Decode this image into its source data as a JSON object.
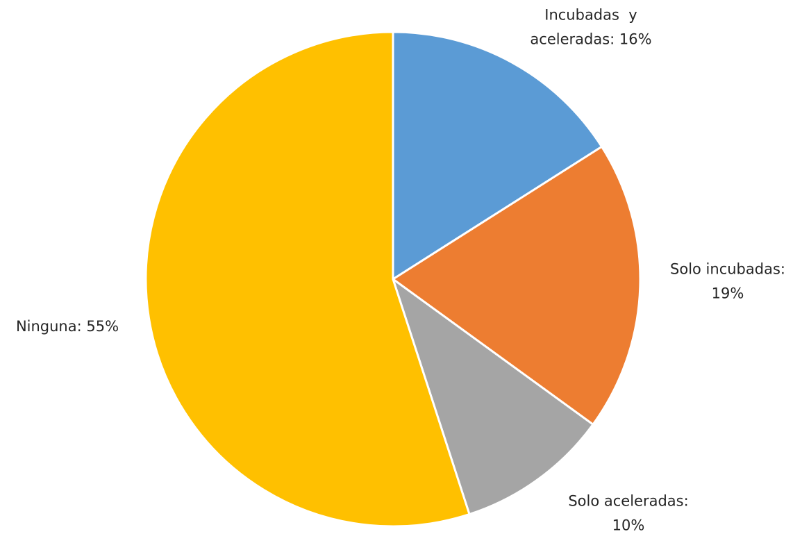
{
  "chart_data": {
    "type": "pie",
    "title": "",
    "categories": [
      "Incubadas y aceleradas",
      "Solo incubadas",
      "Solo aceleradas",
      "Ninguna"
    ],
    "values": [
      16,
      19,
      10,
      55
    ],
    "colors": [
      "#5B9BD5",
      "#ED7D31",
      "#A5A5A5",
      "#FFC000"
    ],
    "data_labels": [
      [
        "Incubadas  y",
        "aceleradas: 16%"
      ],
      [
        "Solo incubadas:",
        "19%"
      ],
      [
        "Solo aceleradas:",
        "10%"
      ],
      [
        "Ninguna: 55%"
      ]
    ],
    "start_angle": "12 o'clock",
    "direction": "clockwise",
    "legend": "none"
  }
}
